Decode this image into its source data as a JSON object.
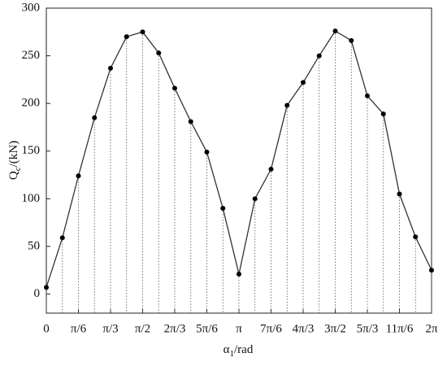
{
  "chart_data": {
    "type": "line",
    "x_label": {
      "main": "α",
      "sub": "1",
      "rest": "/rad"
    },
    "y_label": {
      "main": "Q",
      "sub": "c",
      "rest": "/(kN)"
    },
    "x": [
      0,
      0.2618,
      0.5236,
      0.7854,
      1.0472,
      1.309,
      1.5708,
      1.8326,
      2.0944,
      2.3562,
      2.618,
      2.8798,
      3.1416,
      3.4034,
      3.6652,
      3.927,
      4.1888,
      4.4506,
      4.7124,
      4.9742,
      5.236,
      5.4978,
      5.7596,
      6.0214,
      6.2832
    ],
    "series": [
      {
        "color": "#333333",
        "values": [
          7,
          59,
          124,
          185,
          237,
          270,
          275,
          253,
          216,
          181,
          149,
          90,
          21,
          100,
          131,
          198,
          222,
          250,
          276,
          266,
          208,
          189,
          105,
          60,
          25
        ]
      }
    ],
    "xlim": [
      0,
      6.2832
    ],
    "ylim": [
      -20,
      300
    ],
    "xticks": [
      0,
      {
        "value": 0.5236,
        "label": "π/6"
      },
      {
        "value": 1.0472,
        "label": "π/3"
      },
      {
        "value": 1.5708,
        "label": "π/2"
      },
      {
        "value": 2.0944,
        "label": "2π/3"
      },
      {
        "value": 2.618,
        "label": "5π/6"
      },
      {
        "value": 3.1416,
        "label": "π"
      },
      {
        "value": 3.6652,
        "label": "7π/6"
      },
      {
        "value": 4.1888,
        "label": "4π/3"
      },
      {
        "value": 4.7124,
        "label": "3π/2"
      },
      {
        "value": 5.236,
        "label": "5π/3"
      },
      {
        "value": 5.7596,
        "label": "11π/6"
      },
      {
        "value": 6.2832,
        "label": "2π"
      }
    ],
    "yticks": [
      0,
      50,
      100,
      150,
      200,
      250,
      300
    ],
    "drop_lines": true
  }
}
